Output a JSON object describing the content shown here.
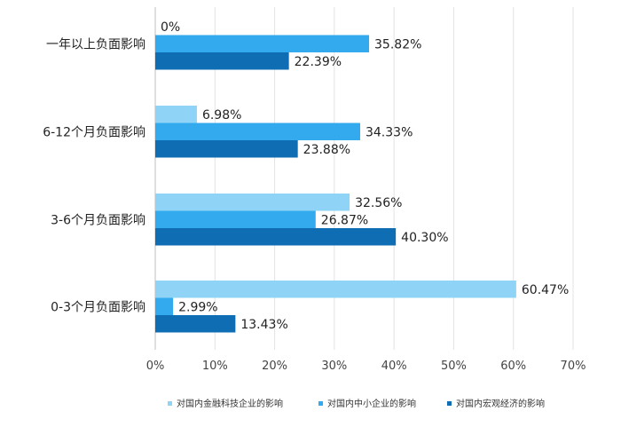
{
  "chart_data": {
    "type": "bar",
    "orientation": "horizontal",
    "categories": [
      "一年以上负面影响",
      "6-12个月负面影响",
      "3-6个月负面影响",
      "0-3个月负面影响"
    ],
    "series": [
      {
        "name": "对国内金融科技企业的影响",
        "color": "#8fd4f7",
        "values": [
          0,
          6.98,
          32.56,
          60.47
        ],
        "labels": [
          "0%",
          "6.98%",
          "32.56%",
          "60.47%"
        ]
      },
      {
        "name": "对国内中小企业的影响",
        "color": "#33aaee",
        "values": [
          35.82,
          34.33,
          26.87,
          2.99
        ],
        "labels": [
          "35.82%",
          "34.33%",
          "26.87%",
          "2.99%"
        ]
      },
      {
        "name": "对国内宏观经济的影响",
        "color": "#0f6db3",
        "values": [
          22.39,
          23.88,
          40.3,
          13.43
        ],
        "labels": [
          "22.39%",
          "23.88%",
          "40.30%",
          "13.43%"
        ]
      }
    ],
    "xlim": [
      0,
      70
    ],
    "x_ticks": [
      "0%",
      "10%",
      "20%",
      "30%",
      "40%",
      "50%",
      "60%",
      "70%"
    ],
    "grid": true,
    "legend_position": "bottom"
  }
}
